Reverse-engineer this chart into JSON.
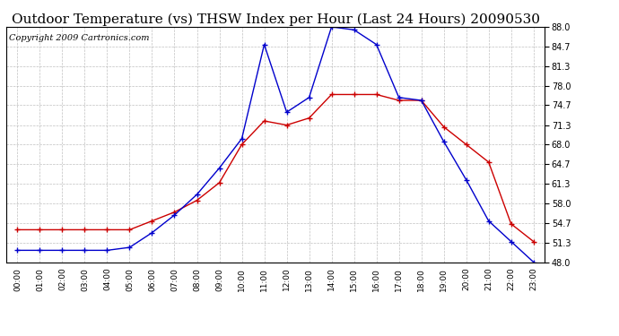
{
  "title": "Outdoor Temperature (vs) THSW Index per Hour (Last 24 Hours) 20090530",
  "copyright": "Copyright 2009 Cartronics.com",
  "hours": [
    "00:00",
    "01:00",
    "02:00",
    "03:00",
    "04:00",
    "05:00",
    "06:00",
    "07:00",
    "08:00",
    "09:00",
    "10:00",
    "11:00",
    "12:00",
    "13:00",
    "14:00",
    "15:00",
    "16:00",
    "17:00",
    "18:00",
    "19:00",
    "20:00",
    "21:00",
    "22:00",
    "23:00"
  ],
  "temp": [
    53.5,
    53.5,
    53.5,
    53.5,
    53.5,
    53.5,
    55.0,
    56.5,
    58.5,
    61.5,
    68.0,
    72.0,
    71.3,
    72.5,
    76.5,
    76.5,
    76.5,
    75.5,
    75.5,
    71.0,
    68.0,
    65.0,
    54.5,
    51.5
  ],
  "thsw": [
    50.0,
    50.0,
    50.0,
    50.0,
    50.0,
    50.5,
    53.0,
    56.0,
    59.5,
    64.0,
    69.0,
    85.0,
    73.5,
    76.0,
    88.0,
    87.5,
    85.0,
    76.0,
    75.5,
    68.5,
    62.0,
    55.0,
    51.5,
    48.0
  ],
  "temp_color": "#cc0000",
  "thsw_color": "#0000cc",
  "ylim_min": 48.0,
  "ylim_max": 88.0,
  "yticks": [
    48.0,
    51.3,
    54.7,
    58.0,
    61.3,
    64.7,
    68.0,
    71.3,
    74.7,
    78.0,
    81.3,
    84.7,
    88.0
  ],
  "bg_color": "#ffffff",
  "plot_bg": "#ffffff",
  "grid_color": "#b0b0b0",
  "title_fontsize": 11,
  "copyright_fontsize": 7
}
